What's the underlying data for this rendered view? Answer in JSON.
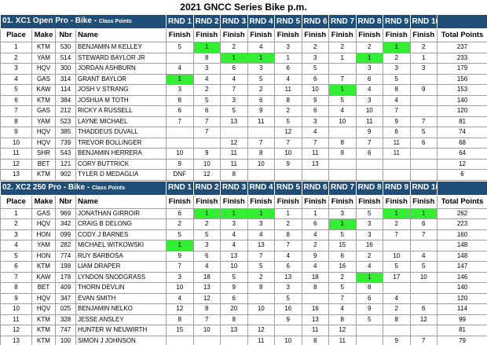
{
  "title": "2021 GNCC Series Bike p.m.",
  "columns": [
    "Place",
    "Make",
    "Nbr",
    "Name",
    "Finish",
    "Total Points"
  ],
  "sections": [
    {
      "title": "01. XC1 Open Pro - Bike - ",
      "subtitle": "Class Points",
      "rounds": [
        "RND 1",
        "RND 2",
        "RND 3",
        "RND 4",
        "RND 5",
        "RND 6",
        "RND 7",
        "RND 8",
        "RND 9",
        "RND 10"
      ],
      "rows": [
        {
          "place": "1",
          "make": "KTM",
          "nbr": "530",
          "name": "BENJAMIN M KELLEY",
          "finishes": [
            "5",
            {
              "value": "1",
              "color": "#33ee33"
            },
            "2",
            "4",
            "3",
            "2",
            "2",
            "2",
            {
              "value": "1",
              "color": "#33ee33"
            },
            "2"
          ],
          "total": "237"
        },
        {
          "place": "2",
          "make": "YAM",
          "nbr": "514",
          "name": "STEWARD BAYLOR JR",
          "finishes": [
            "",
            "8",
            {
              "value": "1",
              "color": "#33ee33"
            },
            {
              "value": "1",
              "color": "#33ee33"
            },
            "1",
            "3",
            "1",
            {
              "value": "1",
              "color": "#33ee33"
            },
            "2",
            "1"
          ],
          "total": "233"
        },
        {
          "place": "3",
          "make": "HQV",
          "nbr": "300",
          "name": "JORDAN ASHBURN",
          "finishes": [
            "4",
            "3",
            "6",
            "3",
            "6",
            "5",
            "",
            "3",
            "3",
            "3"
          ],
          "total": "179"
        },
        {
          "place": "4",
          "make": "GAS",
          "nbr": "314",
          "name": "GRANT BAYLOR",
          "finishes": [
            {
              "value": "1",
              "color": "#33ee33"
            },
            "4",
            "4",
            "5",
            "4",
            "6",
            "7",
            "6",
            "5",
            ""
          ],
          "total": "156"
        },
        {
          "place": "5",
          "make": "KAW",
          "nbr": "114",
          "name": "JOSH V STRANG",
          "finishes": [
            "3",
            "2",
            "7",
            "2",
            "11",
            "10",
            {
              "value": "1",
              "color": "#33ee33"
            },
            "4",
            "8",
            "9"
          ],
          "total": "153"
        },
        {
          "place": "6",
          "make": "KTM",
          "nbr": "384",
          "name": "JOSHUA M TOTH",
          "finishes": [
            "8",
            "5",
            "3",
            "6",
            "8",
            "9",
            "5",
            "3",
            "4",
            ""
          ],
          "total": "140"
        },
        {
          "place": "7",
          "make": "GAS",
          "nbr": "212",
          "name": "RICKY A RUSSELL",
          "finishes": [
            "6",
            "6",
            "5",
            "9",
            "2",
            "6",
            "4",
            "10",
            "7",
            ""
          ],
          "total": "120"
        },
        {
          "place": "8",
          "make": "YAM",
          "nbr": "523",
          "name": "LAYNE MICHAEL",
          "finishes": [
            "7",
            "7",
            "13",
            "11",
            "5",
            "3",
            "10",
            "11",
            "9",
            "7"
          ],
          "total": "81"
        },
        {
          "place": "9",
          "make": "HQV",
          "nbr": "385",
          "name": "THADDEUS DUVALL",
          "finishes": [
            "",
            "7",
            "",
            "",
            "12",
            "4",
            "",
            "9",
            "6",
            "5"
          ],
          "total": "74"
        },
        {
          "place": "10",
          "make": "HQV",
          "nbr": "739",
          "name": "TREVOR BOLLINGER",
          "finishes": [
            "",
            "",
            "12",
            "7",
            "7",
            "7",
            "8",
            "7",
            "11",
            "6"
          ],
          "total": "68"
        },
        {
          "place": "11",
          "make": "SHR",
          "nbr": "543",
          "name": "BENJAMIN HERRERA",
          "finishes": [
            "10",
            "9",
            "11",
            "8",
            "10",
            "11",
            "9",
            "6",
            "11",
            ""
          ],
          "total": "64"
        },
        {
          "place": "12",
          "make": "BET",
          "nbr": "121",
          "name": "CORY BUTTRICK",
          "finishes": [
            "9",
            "10",
            "11",
            "10",
            "9",
            "13",
            "",
            "",
            "",
            ""
          ],
          "total": "12"
        },
        {
          "place": "13",
          "make": "KTM",
          "nbr": "902",
          "name": "TYLER D MEDAGLIA",
          "finishes": [
            "DNF",
            "12",
            "8",
            "",
            "",
            "",
            "",
            "",
            "",
            ""
          ],
          "total": "6"
        }
      ]
    },
    {
      "title": "02. XC2 250 Pro - Bike - ",
      "subtitle": "Class Points",
      "rounds": [
        "RND 1",
        "RND 2",
        "RND 3",
        "RND 4",
        "RND 5",
        "RND 6",
        "RND 7",
        "RND 8",
        "RND 9",
        "RND 10"
      ],
      "rows": [
        {
          "place": "1",
          "make": "GAS",
          "nbr": "969",
          "name": "JONATHAN GIRROIR",
          "finishes": [
            "6",
            {
              "value": "1",
              "color": "#33ee33"
            },
            {
              "value": "1",
              "color": "#33ee33"
            },
            {
              "value": "1",
              "color": "#33ee33"
            },
            "1",
            "1",
            "3",
            "5",
            {
              "value": "1",
              "color": "#33ee33"
            },
            {
              "value": "1",
              "color": "#33ee33"
            }
          ],
          "total": "262"
        },
        {
          "place": "2",
          "make": "HQV",
          "nbr": "342",
          "name": "CRAIG B DELONG",
          "finishes": [
            "2",
            "2",
            "3",
            "3",
            "2",
            "6",
            {
              "value": "1",
              "color": "#33ee33"
            },
            "3",
            "2",
            "6"
          ],
          "total": "223"
        },
        {
          "place": "3",
          "make": "HON",
          "nbr": "099",
          "name": "CODY J BARNES",
          "finishes": [
            "5",
            "5",
            "4",
            "4",
            "8",
            "4",
            "5",
            "3",
            "7",
            "7"
          ],
          "total": "160"
        },
        {
          "place": "4",
          "make": "YAM",
          "nbr": "282",
          "name": "MICHAEL WITKOWSKI",
          "finishes": [
            {
              "value": "1",
              "color": "#33ee33"
            },
            "3",
            "4",
            "13",
            "7",
            "2",
            "15",
            "16",
            "",
            ""
          ],
          "total": "148"
        },
        {
          "place": "5",
          "make": "HON",
          "nbr": "774",
          "name": "RUY BARBOSA",
          "finishes": [
            "9",
            "6",
            "13",
            "7",
            "4",
            "9",
            "6",
            "2",
            "10",
            "4"
          ],
          "total": "148"
        },
        {
          "place": "6",
          "make": "KTM",
          "nbr": "198",
          "name": "LIAM DRAPER",
          "finishes": [
            "7",
            "4",
            "10",
            "5",
            "6",
            "4",
            "16",
            "4",
            "5",
            "5"
          ],
          "total": "147"
        },
        {
          "place": "7",
          "make": "KAW",
          "nbr": "178",
          "name": "LYNDON SNODGRASS",
          "finishes": [
            "3",
            "18",
            "5",
            "2",
            "13",
            "18",
            "2",
            {
              "value": "1",
              "color": "#33ee33"
            },
            "17",
            "10"
          ],
          "total": "146"
        },
        {
          "place": "8",
          "make": "BET",
          "nbr": "409",
          "name": "THORN DEVLIN",
          "finishes": [
            "10",
            "13",
            "9",
            "8",
            "3",
            "8",
            "5",
            "8",
            "",
            ""
          ],
          "total": "140"
        },
        {
          "place": "9",
          "make": "HQV",
          "nbr": "347",
          "name": "EVAN SMITH",
          "finishes": [
            "4",
            "12",
            "6",
            "",
            "5",
            "",
            "7",
            "6",
            "4",
            ""
          ],
          "total": "120"
        },
        {
          "place": "10",
          "make": "HQV",
          "nbr": "025",
          "name": "BENJAMIN NELKO",
          "finishes": [
            "12",
            "8",
            "20",
            "10",
            "16",
            "16",
            "4",
            "9",
            "2",
            "6"
          ],
          "total": "114"
        },
        {
          "place": "11",
          "make": "KTM",
          "nbr": "328",
          "name": "JESSE ANSLEY",
          "finishes": [
            "8",
            "7",
            "8",
            "",
            "9",
            "13",
            "8",
            "5",
            "8",
            "12"
          ],
          "total": "99"
        },
        {
          "place": "12",
          "make": "KTM",
          "nbr": "747",
          "name": "HUNTER W NEUWIRTH",
          "finishes": [
            "15",
            "10",
            "13",
            "12",
            "",
            "11",
            "12",
            "",
            "",
            ""
          ],
          "total": "81"
        },
        {
          "place": "13",
          "make": "KTM",
          "nbr": "100",
          "name": "SIMON J JOHNSON",
          "finishes": [
            "",
            "",
            "",
            "11",
            "10",
            "8",
            "11",
            "",
            "9",
            "7"
          ],
          "total": "79"
        }
      ]
    }
  ]
}
